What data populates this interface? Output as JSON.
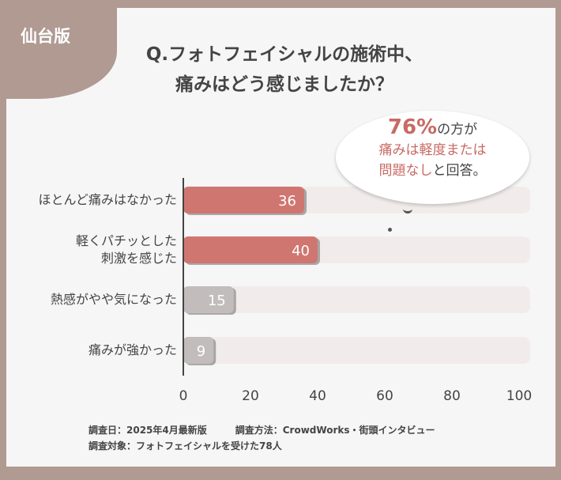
{
  "badge": "仙台版",
  "title_line1": "Q.フォトフェイシャルの施術中、",
  "title_line2": "痛みはどう感じましたか？",
  "callout": {
    "percent": "76%",
    "line1_suffix": "の方が",
    "line2": "痛みは軽度または",
    "line3_red": "問題なし",
    "line3_rest": "と回答。"
  },
  "colors": {
    "highlight": "#d07670",
    "neutral": "#c2bdbc",
    "track": "#f1eceb",
    "frame": "#b09a92"
  },
  "chart_data": {
    "type": "bar",
    "orientation": "horizontal",
    "categories": [
      "ほとんど痛みはなかった",
      "軽くパチッとした刺激を感じた",
      "熱感がやや気になった",
      "痛みが強かった"
    ],
    "category_lines": [
      [
        "ほとんど痛みはなかった"
      ],
      [
        "軽くパチッとした",
        "刺激を感じた"
      ],
      [
        "熱感がやや気になった"
      ],
      [
        "痛みが強かった"
      ]
    ],
    "values": [
      36,
      40,
      15,
      9
    ],
    "highlighted": [
      true,
      true,
      false,
      false
    ],
    "xlim": [
      0,
      100
    ],
    "xticks": [
      0,
      20,
      40,
      60,
      80,
      100
    ],
    "data_labels": [
      "36",
      "40",
      "15",
      "9"
    ]
  },
  "notes": {
    "date": "調査日：2025年4月最新版",
    "method": "調査方法：CrowdWorks・街頭インタビュー",
    "target": "調査対象：フォトフェイシャルを受けた78人"
  }
}
